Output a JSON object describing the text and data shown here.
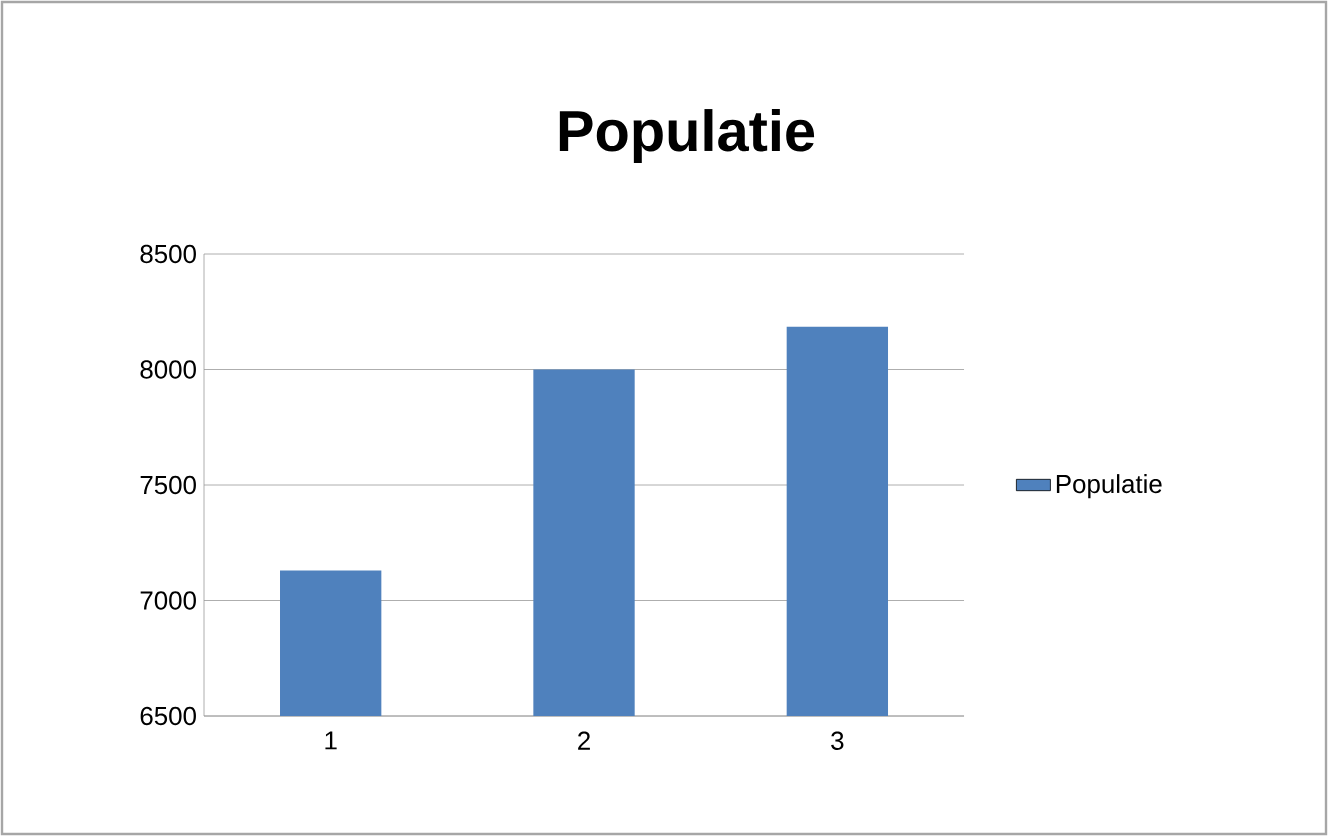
{
  "chart_data": {
    "type": "bar",
    "title": "Populatie",
    "categories": [
      "1",
      "2",
      "3"
    ],
    "series": [
      {
        "name": "Populatie",
        "color": "#4f81bd",
        "values": [
          7130,
          8000,
          8185
        ]
      }
    ],
    "ylim": [
      6500,
      8500
    ],
    "yticks": [
      6500,
      7000,
      7500,
      8000,
      8500
    ],
    "grid": "y",
    "legend": "right"
  }
}
